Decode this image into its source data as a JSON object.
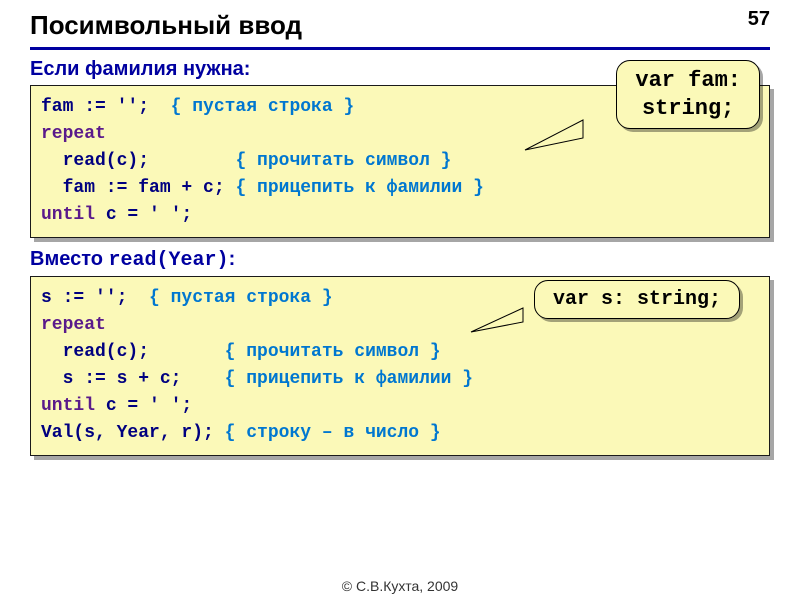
{
  "page_number": "57",
  "title": "Посимвольный ввод",
  "footer": "© С.В.Кухта, 2009",
  "subhead1": "Если фамилия нужна:",
  "subhead2_prefix": "Вместо ",
  "subhead2_code": "read(Year)",
  "subhead2_suffix": ":",
  "callout1_line1": "var fam:",
  "callout1_line2": "string;",
  "callout2_text": "var s: string;",
  "code1": {
    "lines": [
      {
        "pre": "fam := '';  ",
        "cm": "{ пустая строка }"
      },
      {
        "kw": "repeat",
        "pre": "",
        "cm": ""
      },
      {
        "pre": "  read(c);        ",
        "cm": "{ прочитать символ }"
      },
      {
        "pre": "  fam := fam + c; ",
        "cm": "{ прицепить к фамилии }"
      },
      {
        "kw": "until",
        "pre": " c = ' ';",
        "cm": ""
      }
    ]
  },
  "code2": {
    "lines": [
      {
        "pre": "s := '';  ",
        "cm": "{ пустая строка }"
      },
      {
        "kw": "repeat",
        "pre": "",
        "cm": ""
      },
      {
        "pre": "  read(c);       ",
        "cm": "{ прочитать символ }"
      },
      {
        "pre": "  s := s + c;    ",
        "cm": "{ прицепить к фамилии }"
      },
      {
        "kw": "until",
        "pre": " c = ' ';",
        "cm": ""
      },
      {
        "pre": "Val(s, Year, r); ",
        "cm": "{ строку – в число }"
      }
    ]
  },
  "colors": {
    "background": "#ffffff",
    "codebox_bg": "#fbf9b8",
    "keyword": "#5a1a8b",
    "comment": "#0077d0",
    "code_text": "#000080",
    "heading": "#0000a0",
    "hr": "#0000a0"
  },
  "typography": {
    "title_fontsize": 26,
    "subhead_fontsize": 20,
    "code_fontsize": 18,
    "pagenum_fontsize": 20,
    "code_font": "Courier New",
    "body_font": "Arial"
  }
}
